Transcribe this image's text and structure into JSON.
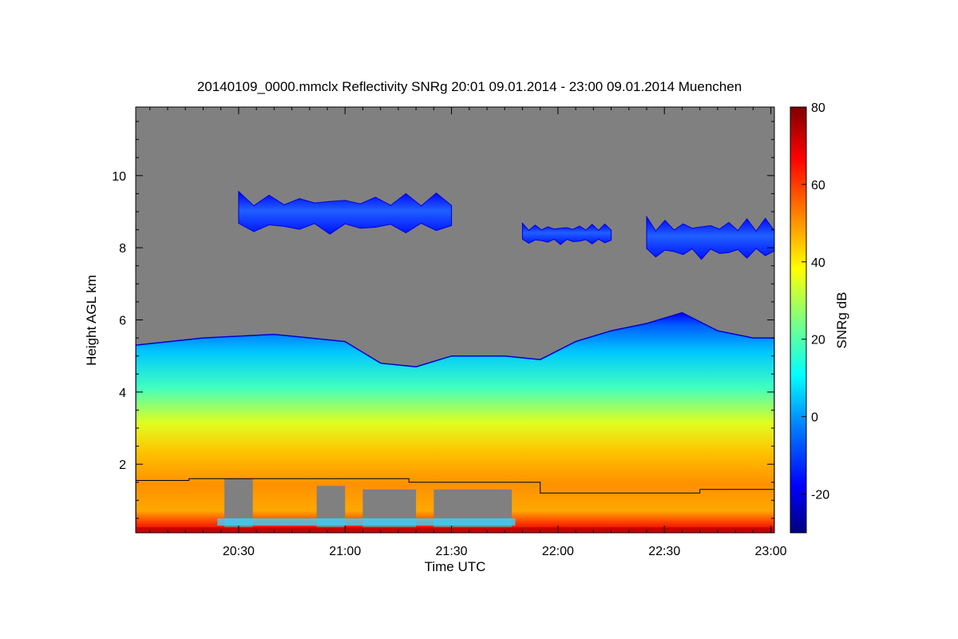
{
  "chart_data": {
    "type": "heatmap",
    "title": "20140109_0000.mmclx Reflectivity SNRg   20:01 09.01.2014 - 23:00 09.01.2014 Muenchen",
    "xlabel": "Time UTC",
    "ylabel": "Height AGL km",
    "colorbar_label": "SNRg dB",
    "x_range": [
      "20:01",
      "23:01"
    ],
    "y_range": [
      0.1,
      11.9
    ],
    "x_ticks": [
      "20:30",
      "21:00",
      "21:30",
      "22:00",
      "22:30",
      "23:00"
    ],
    "y_ticks": [
      2,
      4,
      6,
      8,
      10
    ],
    "colorbar_range": [
      -30,
      80
    ],
    "colorbar_ticks": [
      -20,
      0,
      20,
      40,
      60,
      80
    ],
    "no_signal_color": "#808080",
    "line_color": "#000000",
    "colormap": [
      "#00007f",
      "#0000ff",
      "#007fff",
      "#00ffff",
      "#7fff7f",
      "#ffff00",
      "#ff7f00",
      "#ff0000",
      "#7f0000"
    ],
    "features": {
      "cloud_top_km": [
        [
          "20:01",
          5.3
        ],
        [
          "20:20",
          5.5
        ],
        [
          "20:40",
          5.6
        ],
        [
          "21:00",
          5.4
        ],
        [
          "21:10",
          4.8
        ],
        [
          "21:20",
          4.7
        ],
        [
          "21:30",
          5.0
        ],
        [
          "21:45",
          5.0
        ],
        [
          "21:55",
          4.9
        ],
        [
          "22:05",
          5.4
        ],
        [
          "22:15",
          5.7
        ],
        [
          "22:25",
          5.9
        ],
        [
          "22:35",
          6.2
        ],
        [
          "22:45",
          5.7
        ],
        [
          "22:55",
          5.5
        ],
        [
          "23:01",
          5.5
        ]
      ],
      "upper_cloud": [
        {
          "start": "20:30",
          "end": "21:30",
          "base_km": 8.2,
          "top_km": 9.8
        },
        {
          "start": "21:50",
          "end": "22:15",
          "base_km": 8.0,
          "top_km": 8.8
        },
        {
          "start": "22:25",
          "end": "23:01",
          "base_km": 7.5,
          "top_km": 9.1
        }
      ],
      "melting_layer_line_km": [
        [
          "20:01",
          1.55
        ],
        [
          "20:16",
          1.55
        ],
        [
          "20:16",
          1.6
        ],
        [
          "21:18",
          1.6
        ],
        [
          "21:18",
          1.5
        ],
        [
          "21:55",
          1.5
        ],
        [
          "21:55",
          1.2
        ],
        [
          "22:40",
          1.2
        ],
        [
          "22:40",
          1.3
        ],
        [
          "23:01",
          1.3
        ]
      ]
    }
  }
}
